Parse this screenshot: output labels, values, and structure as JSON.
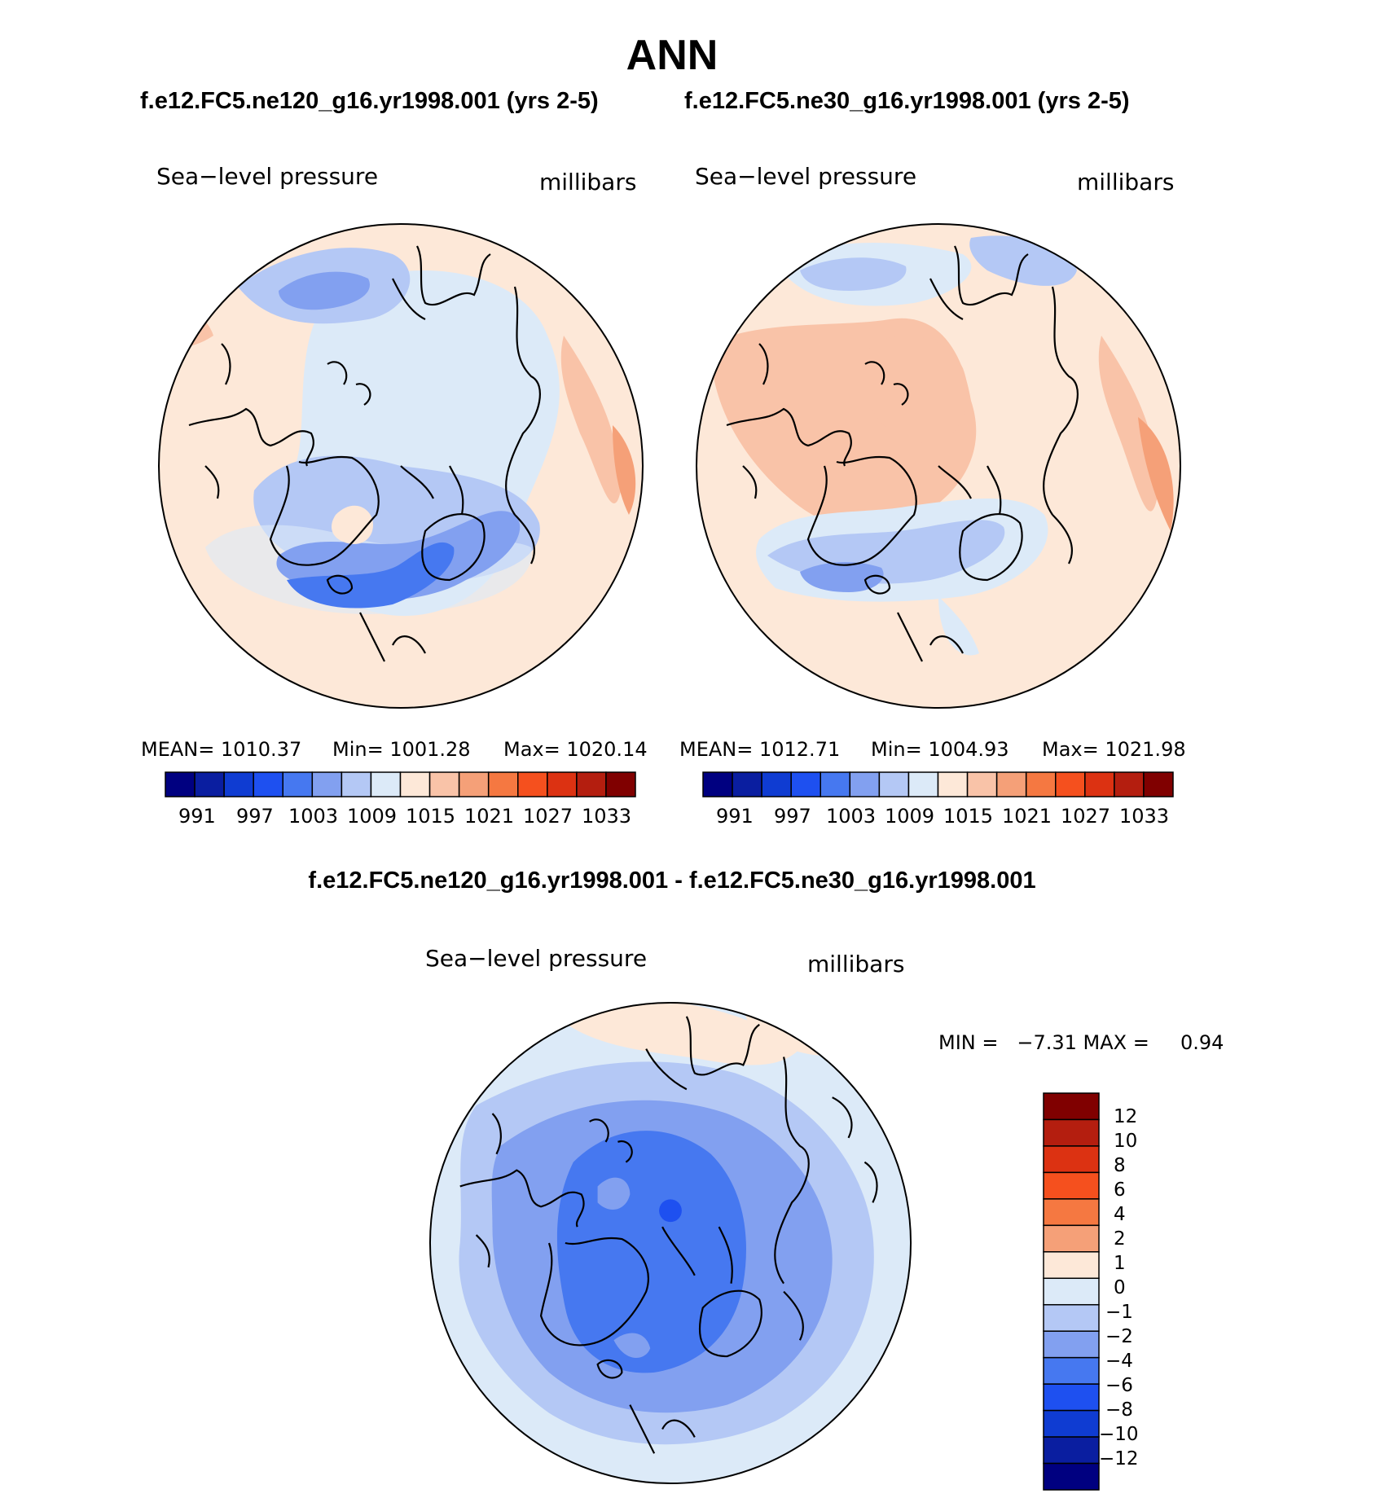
{
  "header": {
    "title": "ANN"
  },
  "panels": [
    {
      "case_title": "f.e12.FC5.ne120_g16.yr1998.001 (yrs 2-5)",
      "field_label": "Sea−level pressure",
      "units_label": "millibars",
      "stats": {
        "mean": "MEAN= 1010.37",
        "min": "Min= 1001.28",
        "max": "Max= 1020.14"
      }
    },
    {
      "case_title": "f.e12.FC5.ne30_g16.yr1998.001 (yrs 2-5)",
      "field_label": "Sea−level pressure",
      "units_label": "millibars",
      "stats": {
        "mean": "MEAN= 1012.71",
        "min": "Min= 1004.93",
        "max": "Max= 1021.98"
      }
    }
  ],
  "abs_colorbar": {
    "colors": [
      "#000080",
      "#0a1ea0",
      "#0f3cd2",
      "#1e50f0",
      "#4678f0",
      "#82a0f0",
      "#b4c8f5",
      "#dceaf8",
      "#fde8d8",
      "#f9c3a8",
      "#f5a078",
      "#f57841",
      "#f5501e",
      "#dc3212",
      "#b41e0f",
      "#800000"
    ],
    "labels": [
      "991",
      "997",
      "1003",
      "1009",
      "1015",
      "1021",
      "1027",
      "1033"
    ]
  },
  "diff": {
    "title": "f.e12.FC5.ne120_g16.yr1998.001 - f.e12.FC5.ne30_g16.yr1998.001",
    "field_label": "Sea−level pressure",
    "units_label": "millibars",
    "stats": "MIN =   −7.31 MAX =     0.94",
    "colorbar": {
      "colors_top_to_bottom": [
        "#800000",
        "#b41e0f",
        "#dc3212",
        "#f5501e",
        "#f57841",
        "#f5a078",
        "#fde8d8",
        "#dceaf8",
        "#b4c8f5",
        "#82a0f0",
        "#4678f0",
        "#1e50f0",
        "#0f3cd2",
        "#0a1ea0",
        "#000080"
      ],
      "labels_top_to_bottom": [
        "12",
        "10",
        "8",
        "6",
        "4",
        "2",
        "1",
        "0",
        "−1",
        "−2",
        "−4",
        "−6",
        "−8",
        "−10",
        "−12"
      ]
    }
  }
}
